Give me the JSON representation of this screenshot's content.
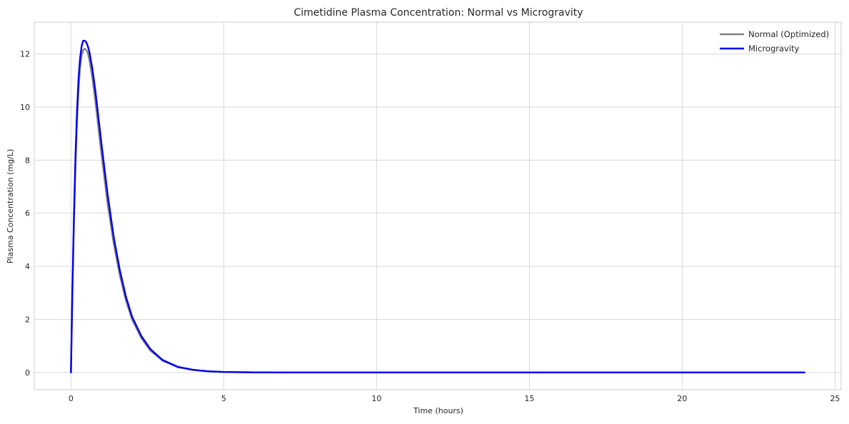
{
  "chart_data": {
    "type": "line",
    "title": "Cimetidine Plasma Concentration: Normal vs Microgravity",
    "xlabel": "Time (hours)",
    "ylabel": "Plasma Concentration (mg/L)",
    "xlim": [
      -1.2,
      25.2
    ],
    "ylim": [
      -0.65,
      13.2
    ],
    "xticks": [
      0,
      5,
      10,
      15,
      20,
      25
    ],
    "yticks": [
      0,
      2,
      4,
      6,
      8,
      10,
      12
    ],
    "grid": true,
    "legend_position": "top-right",
    "series": [
      {
        "name": "Normal (Optimized)",
        "color": "#808080",
        "x": [
          0,
          0.05,
          0.1,
          0.15,
          0.2,
          0.25,
          0.3,
          0.35,
          0.4,
          0.45,
          0.5,
          0.55,
          0.6,
          0.7,
          0.8,
          0.9,
          1.0,
          1.2,
          1.4,
          1.6,
          1.8,
          2.0,
          2.3,
          2.6,
          3.0,
          3.5,
          4.0,
          4.5,
          5.0,
          6.0,
          7.0,
          8.0,
          10.0,
          12.0,
          16.0,
          20.0,
          24.0
        ],
        "values": [
          0,
          3.15,
          5.75,
          7.85,
          9.5,
          10.7,
          11.5,
          11.95,
          12.15,
          12.2,
          12.15,
          12.05,
          11.8,
          11.1,
          10.2,
          9.2,
          8.2,
          6.35,
          4.85,
          3.65,
          2.7,
          2.0,
          1.3,
          0.82,
          0.44,
          0.2,
          0.09,
          0.04,
          0.018,
          0.004,
          0.001,
          0,
          0,
          0,
          0,
          0,
          0
        ]
      },
      {
        "name": "Microgravity",
        "color": "#0000ee",
        "x": [
          0,
          0.05,
          0.1,
          0.15,
          0.2,
          0.25,
          0.3,
          0.35,
          0.4,
          0.45,
          0.5,
          0.55,
          0.6,
          0.7,
          0.8,
          0.9,
          1.0,
          1.2,
          1.4,
          1.6,
          1.8,
          2.0,
          2.3,
          2.6,
          3.0,
          3.5,
          4.0,
          4.5,
          5.0,
          6.0,
          7.0,
          8.0,
          10.0,
          12.0,
          16.0,
          20.0,
          24.0
        ],
        "values": [
          0,
          3.3,
          6.0,
          8.2,
          9.9,
          11.1,
          11.85,
          12.3,
          12.5,
          12.5,
          12.45,
          12.3,
          12.1,
          11.45,
          10.6,
          9.6,
          8.6,
          6.7,
          5.1,
          3.85,
          2.85,
          2.1,
          1.38,
          0.88,
          0.47,
          0.21,
          0.1,
          0.045,
          0.02,
          0.005,
          0.001,
          0,
          0,
          0,
          0,
          0,
          0
        ]
      }
    ]
  }
}
